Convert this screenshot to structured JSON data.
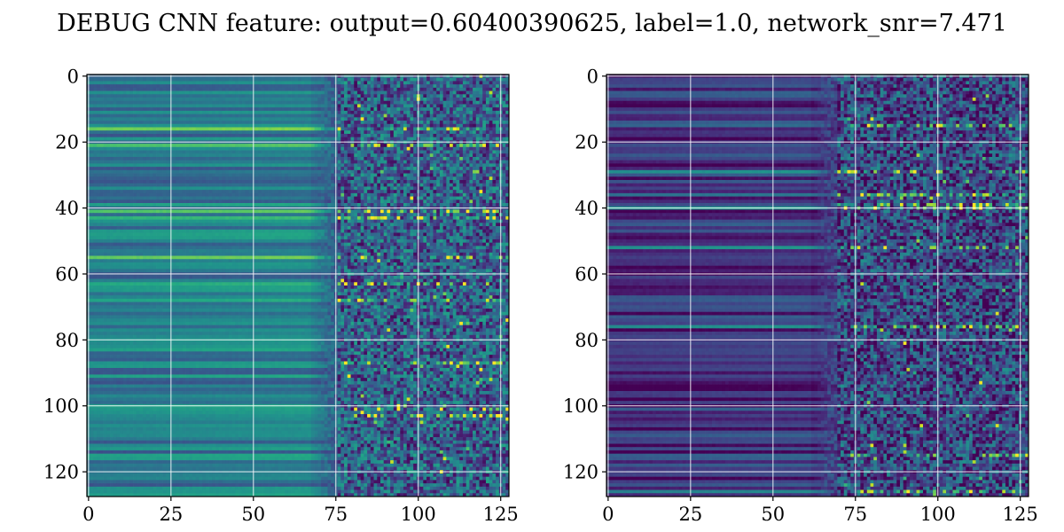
{
  "figure": {
    "title": "DEBUG CNN feature: output=0.60400390625, label=1.0, network_snr=7.471"
  },
  "colors": {
    "colormap": "viridis",
    "grid": "#ffffff",
    "frame": "#000000",
    "background": "#ffffff"
  },
  "chart_data": [
    {
      "type": "heatmap",
      "name": "left-panel",
      "title": "",
      "xlabel": "",
      "ylabel": "",
      "size": [
        128,
        128
      ],
      "xlim": [
        -0.5,
        127.5
      ],
      "ylim": [
        127.5,
        -0.5
      ],
      "xticks": [
        0,
        25,
        50,
        75,
        100,
        125
      ],
      "xtick_labels": [
        "0",
        "25",
        "50",
        "75",
        "100",
        "125"
      ],
      "yticks": [
        0,
        20,
        40,
        60,
        80,
        100,
        120
      ],
      "ytick_labels": [
        "0",
        "20",
        "40",
        "60",
        "80",
        "100",
        "120"
      ],
      "grid": true,
      "colormap": "viridis",
      "description_values": {
        "left_region_mean": 0.4,
        "right_region_mean": 0.3,
        "transition_column": 76,
        "bright_rows": [
          16,
          21,
          41,
          43,
          55,
          63,
          68,
          87,
          101,
          103
        ]
      }
    },
    {
      "type": "heatmap",
      "name": "right-panel",
      "title": "",
      "xlabel": "",
      "ylabel": "",
      "size": [
        128,
        128
      ],
      "xlim": [
        -0.5,
        127.5
      ],
      "ylim": [
        127.5,
        -0.5
      ],
      "xticks": [
        0,
        25,
        50,
        75,
        100,
        125
      ],
      "xtick_labels": [
        "0",
        "25",
        "50",
        "75",
        "100",
        "125"
      ],
      "yticks": [
        0,
        20,
        40,
        60,
        80,
        100,
        120
      ],
      "ytick_labels": [
        "0",
        "20",
        "40",
        "60",
        "80",
        "100",
        "120"
      ],
      "grid": true,
      "colormap": "viridis",
      "description_values": {
        "left_region_mean": 0.13,
        "right_region_mean": 0.22,
        "transition_column": 70,
        "bright_rows": [
          15,
          29,
          36,
          39,
          40,
          52,
          76,
          115,
          126
        ]
      }
    }
  ]
}
